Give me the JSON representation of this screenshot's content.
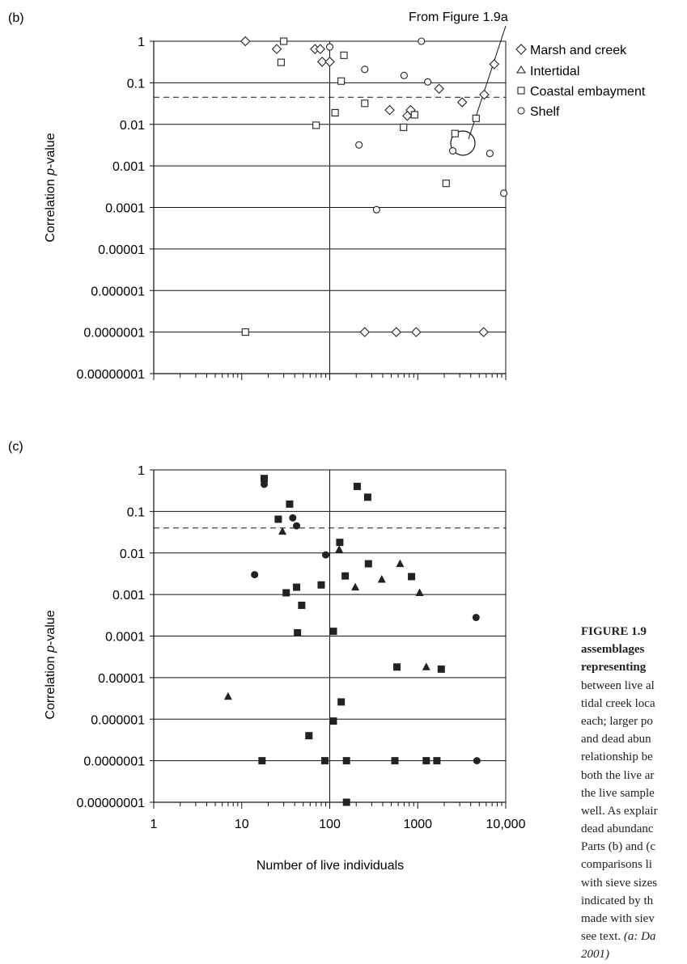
{
  "panel_b_label": "(b)",
  "panel_c_label": "(c)",
  "annotation": "From Figure 1.9a",
  "ylabel_prefix": "Correlation ",
  "ylabel_italic": "p",
  "ylabel_suffix": "-value",
  "caption_lines": [
    {
      "text": "FIGURE 1.9",
      "style": "head"
    },
    {
      "text": "assemblages",
      "style": "head"
    },
    {
      "text": "representing",
      "style": "head"
    },
    {
      "text": "between live al",
      "style": "normal"
    },
    {
      "text": "tidal creek loca",
      "style": "normal"
    },
    {
      "text": "each; larger po",
      "style": "normal"
    },
    {
      "text": "and dead abun",
      "style": "normal"
    },
    {
      "text": "relationship be",
      "style": "normal"
    },
    {
      "text": "both the live ar",
      "style": "normal"
    },
    {
      "text": "the live sample",
      "style": "normal"
    },
    {
      "text": "well. As explair",
      "style": "normal"
    },
    {
      "text": "dead abundanc",
      "style": "normal"
    },
    {
      "text": "Parts (b) and (c",
      "style": "normal"
    },
    {
      "text": "comparisons li",
      "style": "normal"
    },
    {
      "text": "with sieve sizes",
      "style": "normal"
    },
    {
      "text": "indicated by th",
      "style": "normal"
    },
    {
      "text": "made with siev",
      "style": "normal"
    },
    {
      "text": "see text.",
      "style": "normal",
      "italic_tail": " (a: Da"
    },
    {
      "text": "2001)",
      "style": "italic"
    }
  ],
  "chart_data": [
    {
      "panel": "(b)",
      "type": "scatter",
      "xscale": "log",
      "yscale": "log",
      "xlim": [
        1,
        10000
      ],
      "ylim": [
        1e-08,
        1
      ],
      "ylabel": "Correlation p-value",
      "y_tick_labels": [
        "1",
        "0.1",
        "0.01",
        "0.001",
        "0.0001",
        "0.00001",
        "0.000001",
        "0.0000001",
        "0.00000001"
      ],
      "x_tick_labels": [],
      "threshold_line": 0.045,
      "grid": "horizontal",
      "legend_position": "right",
      "series": [
        {
          "name": "Marsh and creek",
          "marker": "diamond",
          "points": [
            [
              11,
              1
            ],
            [
              25,
              0.65
            ],
            [
              68,
              0.65
            ],
            [
              78,
              0.65
            ],
            [
              82,
              0.32
            ],
            [
              100,
              0.32
            ],
            [
              7400,
              0.28
            ],
            [
              1750,
              0.072
            ],
            [
              5700,
              0.052
            ],
            [
              480,
              0.022
            ],
            [
              830,
              0.022
            ],
            [
              760,
              0.016
            ],
            [
              3200,
              0.034
            ],
            [
              250,
              1e-07
            ],
            [
              570,
              1e-07
            ],
            [
              960,
              1e-07
            ],
            [
              5600,
              1e-07
            ]
          ]
        },
        {
          "name": "Intertidal",
          "marker": "triangle",
          "points": []
        },
        {
          "name": "Coastal embayment",
          "marker": "square",
          "points": [
            [
              30,
              1
            ],
            [
              28,
              0.31
            ],
            [
              145,
              0.46
            ],
            [
              135,
              0.11
            ],
            [
              250,
              0.032
            ],
            [
              115,
              0.019
            ],
            [
              70,
              0.0095
            ],
            [
              690,
              0.0085
            ],
            [
              920,
              0.017
            ],
            [
              2650,
              0.006
            ],
            [
              4600,
              0.014
            ],
            [
              2100,
              0.00038
            ],
            [
              11,
              1e-07
            ]
          ]
        },
        {
          "name": "Shelf",
          "marker": "circle",
          "points": [
            [
              100,
              0.73
            ],
            [
              250,
              0.21
            ],
            [
              700,
              0.15
            ],
            [
              1100,
              1
            ],
            [
              1300,
              0.105
            ],
            [
              215,
              0.0032
            ],
            [
              2500,
              0.0023
            ],
            [
              6600,
              0.002
            ],
            [
              9500,
              0.00022
            ],
            [
              340,
              8.8e-05
            ]
          ]
        }
      ]
    },
    {
      "panel": "(c)",
      "type": "scatter",
      "xscale": "log",
      "yscale": "log",
      "xlim": [
        1,
        10000
      ],
      "ylim": [
        1e-08,
        1
      ],
      "xlabel": "Number of live individuals",
      "ylabel": "Correlation p-value",
      "y_tick_labels": [
        "1",
        "0.1",
        "0.01",
        "0.001",
        "0.0001",
        "0.00001",
        "0.000001",
        "0.0000001",
        "0.00000001"
      ],
      "x_tick_labels": [
        "1",
        "10",
        "100",
        "1000",
        "10,000"
      ],
      "threshold_line": 0.04,
      "grid": "horizontal",
      "series": [
        {
          "name": "square",
          "marker": "filled-square",
          "points": [
            [
              18,
              0.62
            ],
            [
              35,
              0.15
            ],
            [
              26,
              0.065
            ],
            [
              130,
              0.018
            ],
            [
              205,
              0.4
            ],
            [
              270,
              0.22
            ],
            [
              275,
              0.0055
            ],
            [
              150,
              0.0028
            ],
            [
              850,
              0.0027
            ],
            [
              80,
              0.0017
            ],
            [
              42,
              0.0015
            ],
            [
              32,
              0.0011
            ],
            [
              48,
              0.00055
            ],
            [
              43,
              0.00012
            ],
            [
              110,
              0.00013
            ],
            [
              580,
              1.8e-05
            ],
            [
              1850,
              1.6e-05
            ],
            [
              135,
              2.6e-06
            ],
            [
              58,
              4e-07
            ],
            [
              110,
              9e-07
            ],
            [
              17,
              1e-07
            ],
            [
              88,
              1e-07
            ],
            [
              155,
              1e-07
            ],
            [
              550,
              1e-07
            ],
            [
              1250,
              1e-07
            ],
            [
              1650,
              1e-07
            ],
            [
              155,
              1e-08
            ]
          ]
        },
        {
          "name": "circle",
          "marker": "filled-circle",
          "points": [
            [
              18,
              0.45
            ],
            [
              38,
              0.07
            ],
            [
              42,
              0.045
            ],
            [
              90,
              0.009
            ],
            [
              14,
              0.003
            ],
            [
              4600,
              0.00028
            ],
            [
              4700,
              1e-07
            ]
          ]
        },
        {
          "name": "triangle",
          "marker": "filled-triangle",
          "points": [
            [
              29,
              0.033
            ],
            [
              128,
              0.012
            ],
            [
              630,
              0.0055
            ],
            [
              390,
              0.0023
            ],
            [
              195,
              0.0015
            ],
            [
              1050,
              0.0011
            ],
            [
              1250,
              1.8e-05
            ],
            [
              7,
              3.5e-06
            ]
          ]
        }
      ]
    }
  ]
}
